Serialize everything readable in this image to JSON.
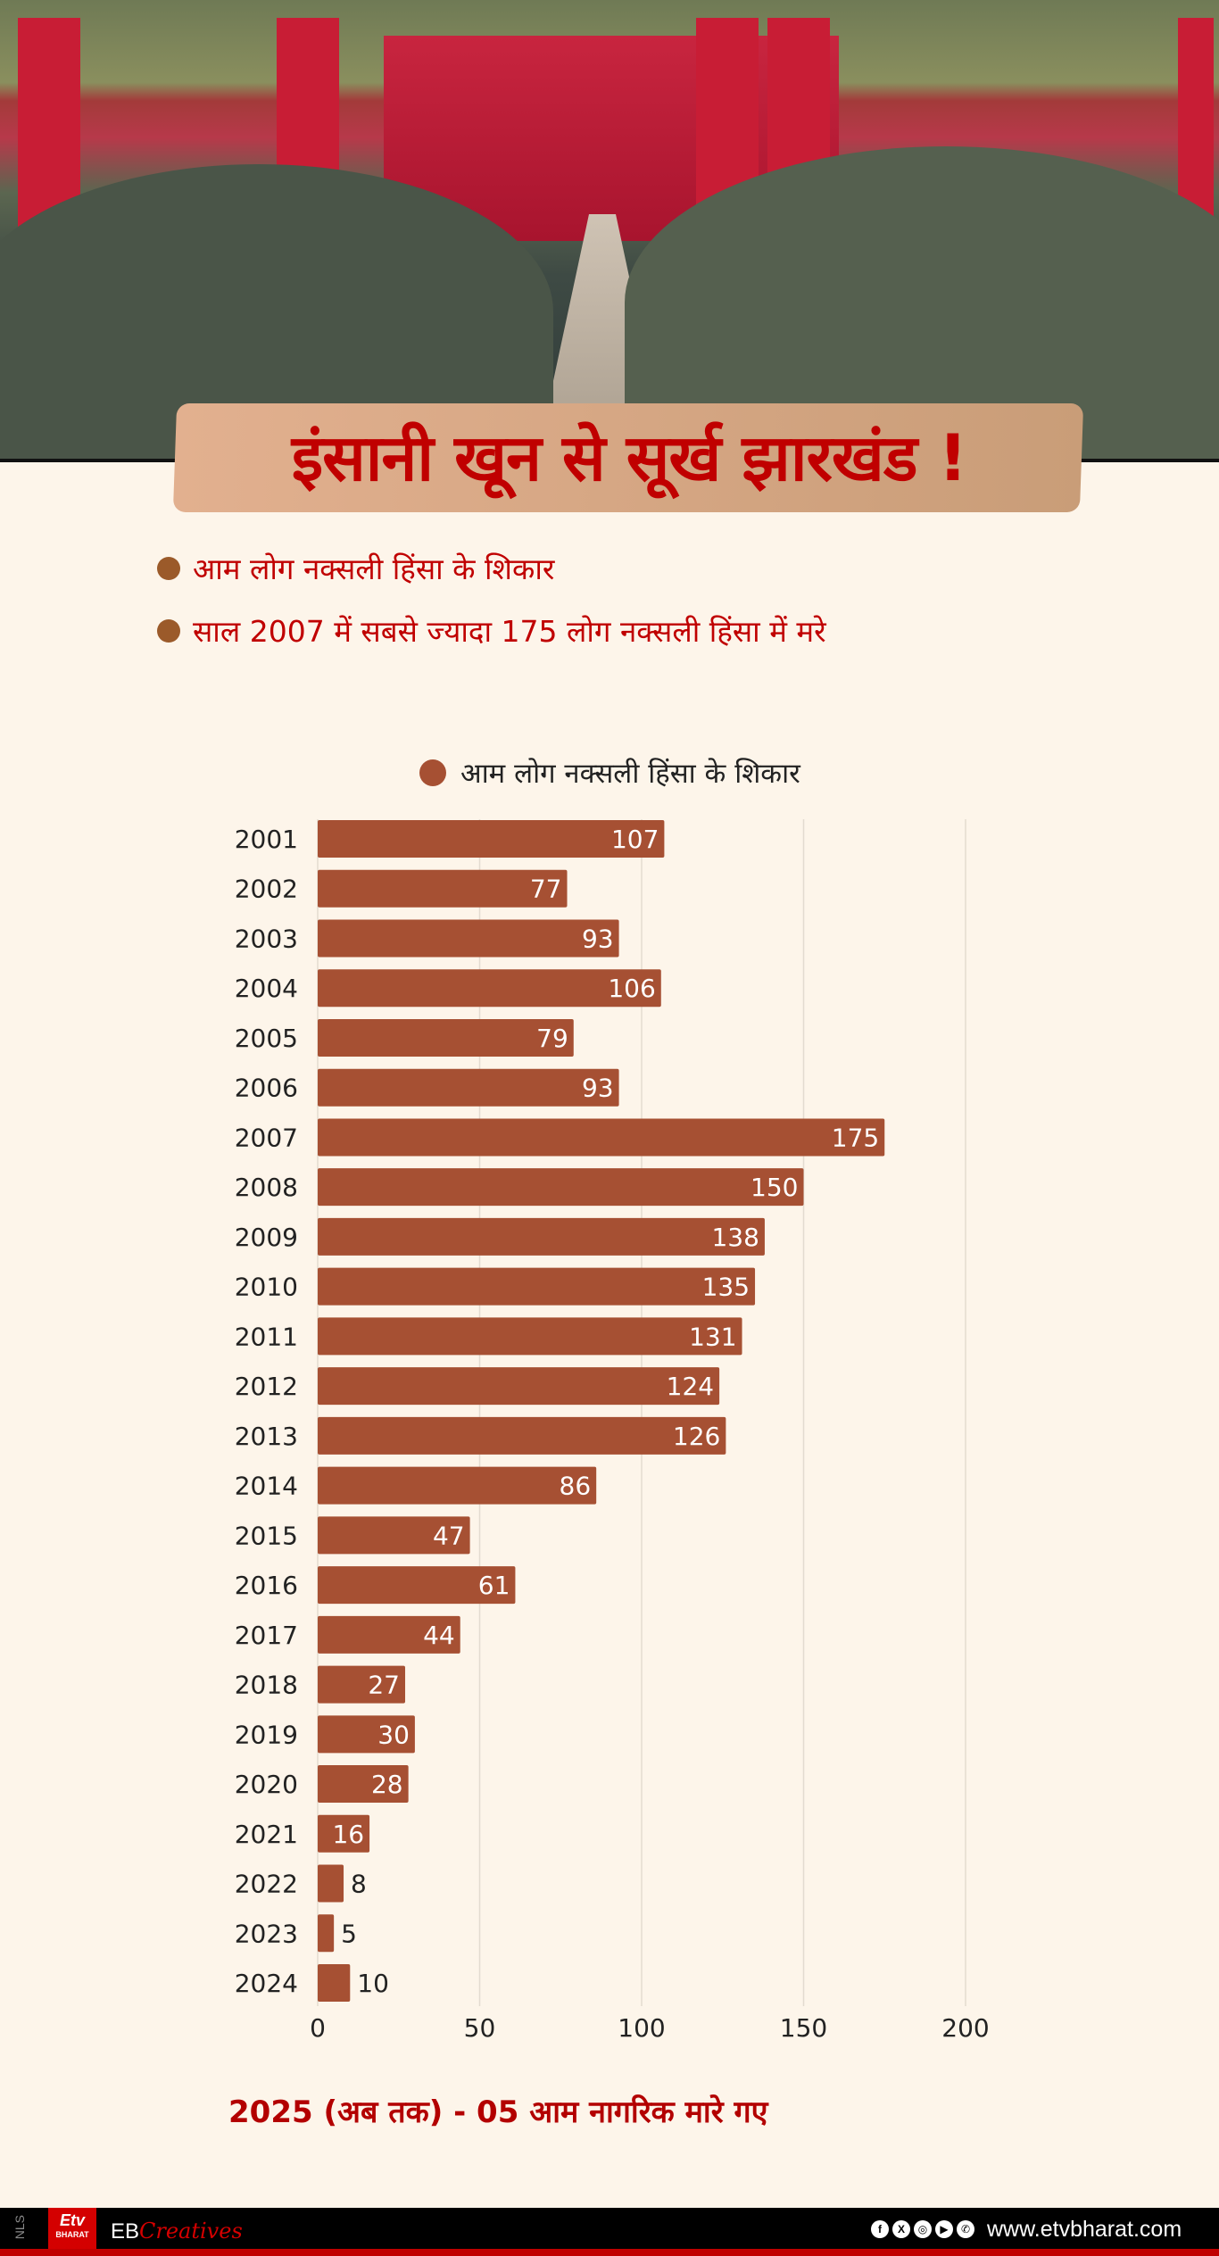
{
  "header": {
    "title": "इंसानी खून से सूर्ख झारखंड !",
    "bullets": [
      "आम लोग नक्सली हिंसा के शिकार",
      "साल 2007 में सबसे ज्यादा 175 लोग नक्सली हिंसा में मरे"
    ]
  },
  "chart_data": {
    "type": "bar",
    "orientation": "horizontal",
    "legend": {
      "label": "आम लोग नक्सली हिंसा के शिकार",
      "placement": "top"
    },
    "categories": [
      "2001",
      "2002",
      "2003",
      "2004",
      "2005",
      "2006",
      "2007",
      "2008",
      "2009",
      "2010",
      "2011",
      "2012",
      "2013",
      "2014",
      "2015",
      "2016",
      "2017",
      "2018",
      "2019",
      "2020",
      "2021",
      "2022",
      "2023",
      "2024"
    ],
    "series": [
      {
        "name": "आम लोग नक्सली हिंसा के शिकार",
        "values": [
          107,
          77,
          93,
          106,
          79,
          93,
          175,
          150,
          138,
          135,
          131,
          124,
          126,
          86,
          47,
          61,
          44,
          27,
          30,
          28,
          16,
          8,
          5,
          10
        ]
      }
    ],
    "xlim": [
      0,
      200
    ],
    "xticks": [
      "0",
      "50",
      "100",
      "150",
      "200"
    ],
    "grid": true,
    "bar_color": "#a65033"
  },
  "note": "2025 (अब तक) - 05 आम नागरिक मारे गए",
  "footer": {
    "side_label": "NLS",
    "logo_text": "Etv",
    "logo_sub": "BHARAT",
    "brand_prefix": "EB",
    "brand_suffix": "Creatives",
    "social_icons": [
      "facebook-icon",
      "x-icon",
      "instagram-icon",
      "youtube-icon",
      "whatsapp-icon"
    ],
    "url": "www.etvbharat.com"
  },
  "colors": {
    "title_red": "#c00000",
    "background": "#fdf5ea",
    "bar": "#a65033",
    "bullet": "#9b5a2a"
  }
}
